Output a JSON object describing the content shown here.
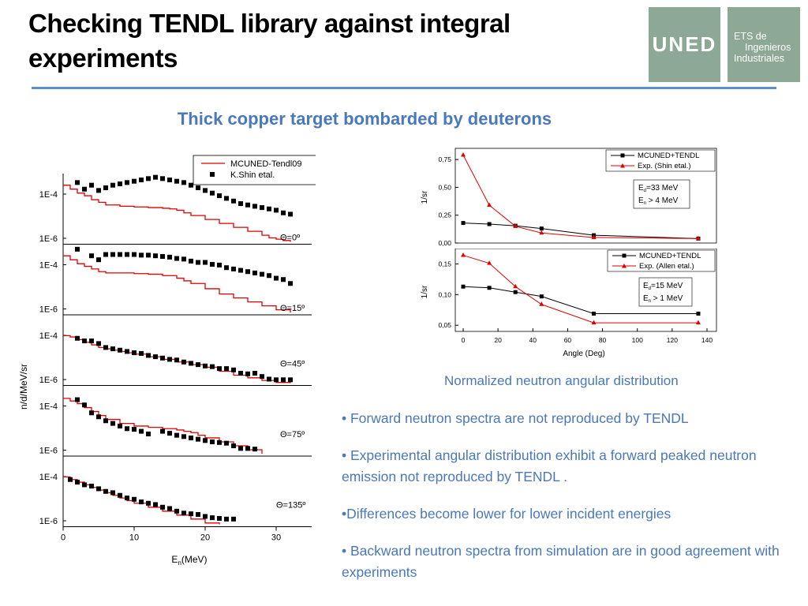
{
  "header": {
    "title": "Checking TENDL library against integral experiments",
    "logo_text": "UNED",
    "logo2_lines": [
      "ETS de",
      "Ingenieros",
      "Industriales"
    ]
  },
  "subtitle": "Thick copper target bombarded by deuterons",
  "caption": "Normalized neutron angular distribution",
  "bullets": [
    "• Forward neutron spectra are  not reproduced by TENDL",
    "• Experimental angular distribution exhibit a forward peaked neutron emission not reproduced by TENDL .",
    "•Differences become lower for lower incident energies",
    "• Backward neutron spectra from simulation are in good agreement with experiments"
  ],
  "colors": {
    "accent": "#4a78b8",
    "rule": "#5b8fce",
    "logo": "#8da895",
    "sim": "#e00000",
    "exp": "#000000"
  },
  "chart_data": [
    {
      "type": "line",
      "ylabel": "n/d/MeV/sr",
      "xlim": [
        0,
        35
      ],
      "xticks": [
        0,
        10,
        20,
        30
      ],
      "ylog": true,
      "legend": [
        "MCUNED-Tendl09",
        "K.Shin etal."
      ],
      "legend_position": "top-right",
      "panels": [
        {
          "label": "Θ=0º",
          "yticks": [
            "1E-4",
            "1E-6"
          ],
          "exp": {
            "x": [
              2,
              3,
              4,
              5,
              6,
              7,
              8,
              9,
              10,
              11,
              12,
              13,
              14,
              15,
              16,
              17,
              18,
              19,
              20,
              21,
              22,
              23,
              24,
              25,
              26,
              27,
              28,
              29,
              30,
              31,
              32
            ],
            "y": [
              4.5,
              4.0,
              4.3,
              3.9,
              4.1,
              4.3,
              4.4,
              4.5,
              4.6,
              4.7,
              4.8,
              4.9,
              4.8,
              4.7,
              4.6,
              4.5,
              4.3,
              4.1,
              3.9,
              3.7,
              3.5,
              3.3,
              3.1,
              2.9,
              2.8,
              2.7,
              2.6,
              2.5,
              2.4,
              2.2,
              2.1
            ]
          },
          "sim": {
            "x": [
              0,
              1,
              2,
              3,
              4,
              5,
              6,
              8,
              10,
              12,
              14,
              15,
              16,
              17,
              18,
              20,
              22,
              24,
              26,
              28,
              29,
              30,
              31,
              32
            ],
            "y": [
              4.3,
              4.0,
              3.7,
              3.5,
              3.2,
              3.0,
              2.8,
              2.7,
              2.65,
              2.6,
              2.55,
              2.5,
              2.4,
              2.2,
              2.0,
              1.7,
              1.4,
              1.1,
              0.8,
              0.5,
              0.3,
              0.2,
              0.1,
              0.0
            ]
          }
        },
        {
          "label": "Θ=15º",
          "yticks": [
            "1E-4",
            "1E-6"
          ],
          "exp": {
            "x": [
              2,
              4,
              5,
              6,
              7,
              8,
              9,
              10,
              11,
              12,
              13,
              14,
              15,
              16,
              17,
              18,
              19,
              20,
              21,
              22,
              23,
              24,
              25,
              26,
              27,
              28,
              29,
              30,
              31,
              32
            ],
            "y": [
              4.8,
              4.3,
              4.0,
              4.4,
              4.4,
              4.4,
              4.4,
              4.4,
              4.35,
              4.35,
              4.3,
              4.25,
              4.2,
              4.1,
              4.05,
              3.9,
              3.8,
              3.8,
              3.65,
              3.6,
              3.4,
              3.3,
              3.2,
              3.1,
              3.0,
              2.9,
              2.8,
              2.6,
              2.5,
              2.2
            ]
          },
          "sim": {
            "x": [
              0,
              1,
              2,
              3,
              4,
              5,
              6,
              8,
              10,
              12,
              14,
              16,
              17,
              18,
              20,
              22,
              24,
              26,
              28,
              30,
              32
            ],
            "y": [
              4.3,
              4.0,
              3.7,
              3.5,
              3.3,
              3.1,
              3.0,
              3.0,
              2.95,
              2.9,
              2.8,
              2.6,
              2.4,
              2.2,
              1.8,
              1.4,
              1.1,
              0.8,
              0.5,
              0.2,
              0.0
            ]
          }
        },
        {
          "label": "Θ=45º",
          "yticks": [
            "1E-4",
            "1E-6"
          ],
          "exp": {
            "x": [
              2,
              3,
              4,
              5,
              6,
              7,
              8,
              9,
              10,
              11,
              12,
              13,
              14,
              15,
              16,
              17,
              18,
              19,
              20,
              21,
              22,
              23,
              24,
              25,
              26,
              27,
              28,
              29,
              30,
              31,
              32
            ],
            "y": [
              3.4,
              3.2,
              3.2,
              3.0,
              2.7,
              2.6,
              2.5,
              2.4,
              2.3,
              2.25,
              2.1,
              2.0,
              1.9,
              1.8,
              1.75,
              1.6,
              1.5,
              1.4,
              1.3,
              1.25,
              1.1,
              1.1,
              1.0,
              0.75,
              0.7,
              0.75,
              0.5,
              0.3,
              0.25,
              0.25,
              0.25
            ]
          },
          "sim": {
            "x": [
              0,
              1,
              2,
              3,
              4,
              5,
              6,
              7,
              8,
              9,
              10,
              12,
              14,
              16,
              18,
              20,
              22,
              24,
              26,
              28,
              30,
              32
            ],
            "y": [
              3.6,
              3.5,
              3.3,
              3.1,
              2.9,
              2.7,
              2.6,
              2.5,
              2.4,
              2.3,
              2.2,
              2.0,
              1.8,
              1.6,
              1.4,
              1.2,
              0.9,
              0.6,
              0.4,
              0.2,
              0.05,
              0.0
            ]
          }
        },
        {
          "label": "Θ=75º",
          "yticks": [
            "1E-4",
            "1E-6"
          ],
          "exp": {
            "x": [
              2,
              3,
              4,
              5,
              6,
              7,
              8,
              9,
              10,
              11,
              12,
              14,
              15,
              16,
              17,
              18,
              19,
              20,
              21,
              22,
              23,
              24,
              25,
              26,
              27
            ],
            "y": [
              4.1,
              3.7,
              3.1,
              2.8,
              2.5,
              2.3,
              2.1,
              1.9,
              1.85,
              1.7,
              1.5,
              1.7,
              1.55,
              1.4,
              1.3,
              1.2,
              1.1,
              1.0,
              0.9,
              0.85,
              0.8,
              0.6,
              0.4,
              0.4,
              0.35
            ]
          },
          "sim": {
            "x": [
              0,
              1,
              2,
              3,
              4,
              5,
              6,
              8,
              10,
              12,
              14,
              16,
              17,
              18,
              19,
              20,
              22,
              24,
              26,
              28
            ],
            "y": [
              4.2,
              4.0,
              3.8,
              3.5,
              3.2,
              2.9,
              2.6,
              2.3,
              2.1,
              2.0,
              1.9,
              1.8,
              1.7,
              1.6,
              1.4,
              1.2,
              0.9,
              0.6,
              0.3,
              0.0
            ]
          }
        },
        {
          "label": "Θ=135º",
          "yticks": [
            "1E-4",
            "1E-6"
          ],
          "exp": {
            "x": [
              1,
              2,
              3,
              4,
              5,
              6,
              7,
              8,
              9,
              10,
              11,
              12,
              13,
              14,
              15,
              16,
              17,
              18,
              19,
              20,
              21,
              22,
              23,
              24
            ],
            "y": [
              3.4,
              3.2,
              3.0,
              2.9,
              2.7,
              2.5,
              2.4,
              2.2,
              2.0,
              1.9,
              1.7,
              1.6,
              1.5,
              1.3,
              1.2,
              1.0,
              0.85,
              0.8,
              0.75,
              0.6,
              0.5,
              0.45,
              0.4,
              0.4
            ]
          },
          "sim": {
            "x": [
              0,
              1,
              2,
              3,
              4,
              5,
              6,
              7,
              8,
              9,
              10,
              12,
              14,
              16,
              18,
              20,
              22
            ],
            "y": [
              3.6,
              3.4,
              3.2,
              3.0,
              2.8,
              2.6,
              2.4,
              2.2,
              2.0,
              1.8,
              1.6,
              1.3,
              1.0,
              0.7,
              0.4,
              0.1,
              0.0
            ]
          }
        }
      ],
      "xlabel": "En(MeV)"
    },
    {
      "type": "line",
      "ylabel": "1/sr",
      "ylim": [
        0,
        0.85
      ],
      "yticks": [
        "0,00",
        "0,25",
        "0,50",
        "0,75"
      ],
      "xlim": [
        0,
        140
      ],
      "legend": [
        "MCUNED+TENDL",
        "Exp. (Shin etal.)"
      ],
      "legend_position": "top-right",
      "annotation": [
        "Ed=33 MeV",
        "En > 4 MeV"
      ],
      "series": [
        {
          "name": "MCUNED+TENDL",
          "x": [
            0,
            15,
            30,
            45,
            75,
            135
          ],
          "y": [
            0.18,
            0.17,
            0.155,
            0.13,
            0.07,
            0.04
          ]
        },
        {
          "name": "Exp. (Shin etal.)",
          "x": [
            0,
            15,
            30,
            45,
            75,
            135
          ],
          "y": [
            0.79,
            0.34,
            0.15,
            0.09,
            0.05,
            0.04
          ]
        }
      ]
    },
    {
      "type": "line",
      "ylabel": "1/sr",
      "xlabel": "Angle (Deg)",
      "ylim": [
        0.04,
        0.175
      ],
      "yticks": [
        "0,05",
        "0,10",
        "0,15"
      ],
      "xlim": [
        0,
        140
      ],
      "xticks": [
        "0",
        "20",
        "40",
        "60",
        "80",
        "100",
        "120",
        "140"
      ],
      "legend": [
        "MCUNED+TENDL",
        "Exp. (Allen etal.)"
      ],
      "legend_position": "top-right",
      "annotation": [
        "Ed=15 MeV",
        "En > 1 MeV"
      ],
      "series": [
        {
          "name": "MCUNED+TENDL",
          "x": [
            0,
            15,
            30,
            45,
            75,
            135
          ],
          "y": [
            0.113,
            0.111,
            0.104,
            0.097,
            0.069,
            0.069
          ]
        },
        {
          "name": "Exp. (Allen etal.)",
          "x": [
            0,
            15,
            30,
            45,
            75,
            135
          ],
          "y": [
            0.164,
            0.151,
            0.113,
            0.084,
            0.054,
            0.054
          ]
        }
      ]
    }
  ]
}
